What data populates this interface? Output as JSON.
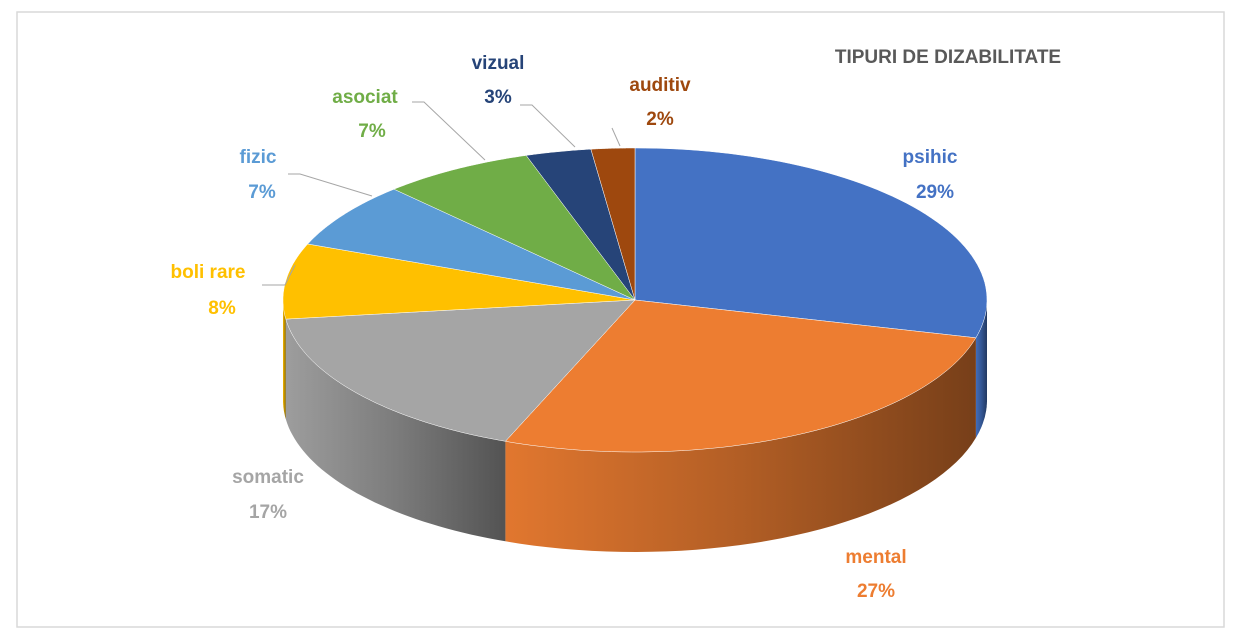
{
  "chart_data": {
    "type": "pie",
    "title": "TIPURI DE DIZABILITATE",
    "categories": [
      "psihic",
      "mental",
      "somatic",
      "boli rare",
      "fizic",
      "asociat",
      "vizual",
      "auditiv"
    ],
    "values": [
      29,
      27,
      17,
      8,
      7,
      7,
      3,
      2
    ],
    "value_labels": [
      "29%",
      "27%",
      "17%",
      "8%",
      "7%",
      "7%",
      "3%",
      "2%"
    ],
    "colors": [
      "#4472c4",
      "#ed7d31",
      "#a5a5a5",
      "#ffc000",
      "#5b9bd5",
      "#70ad47",
      "#264478",
      "#9e480e"
    ]
  }
}
